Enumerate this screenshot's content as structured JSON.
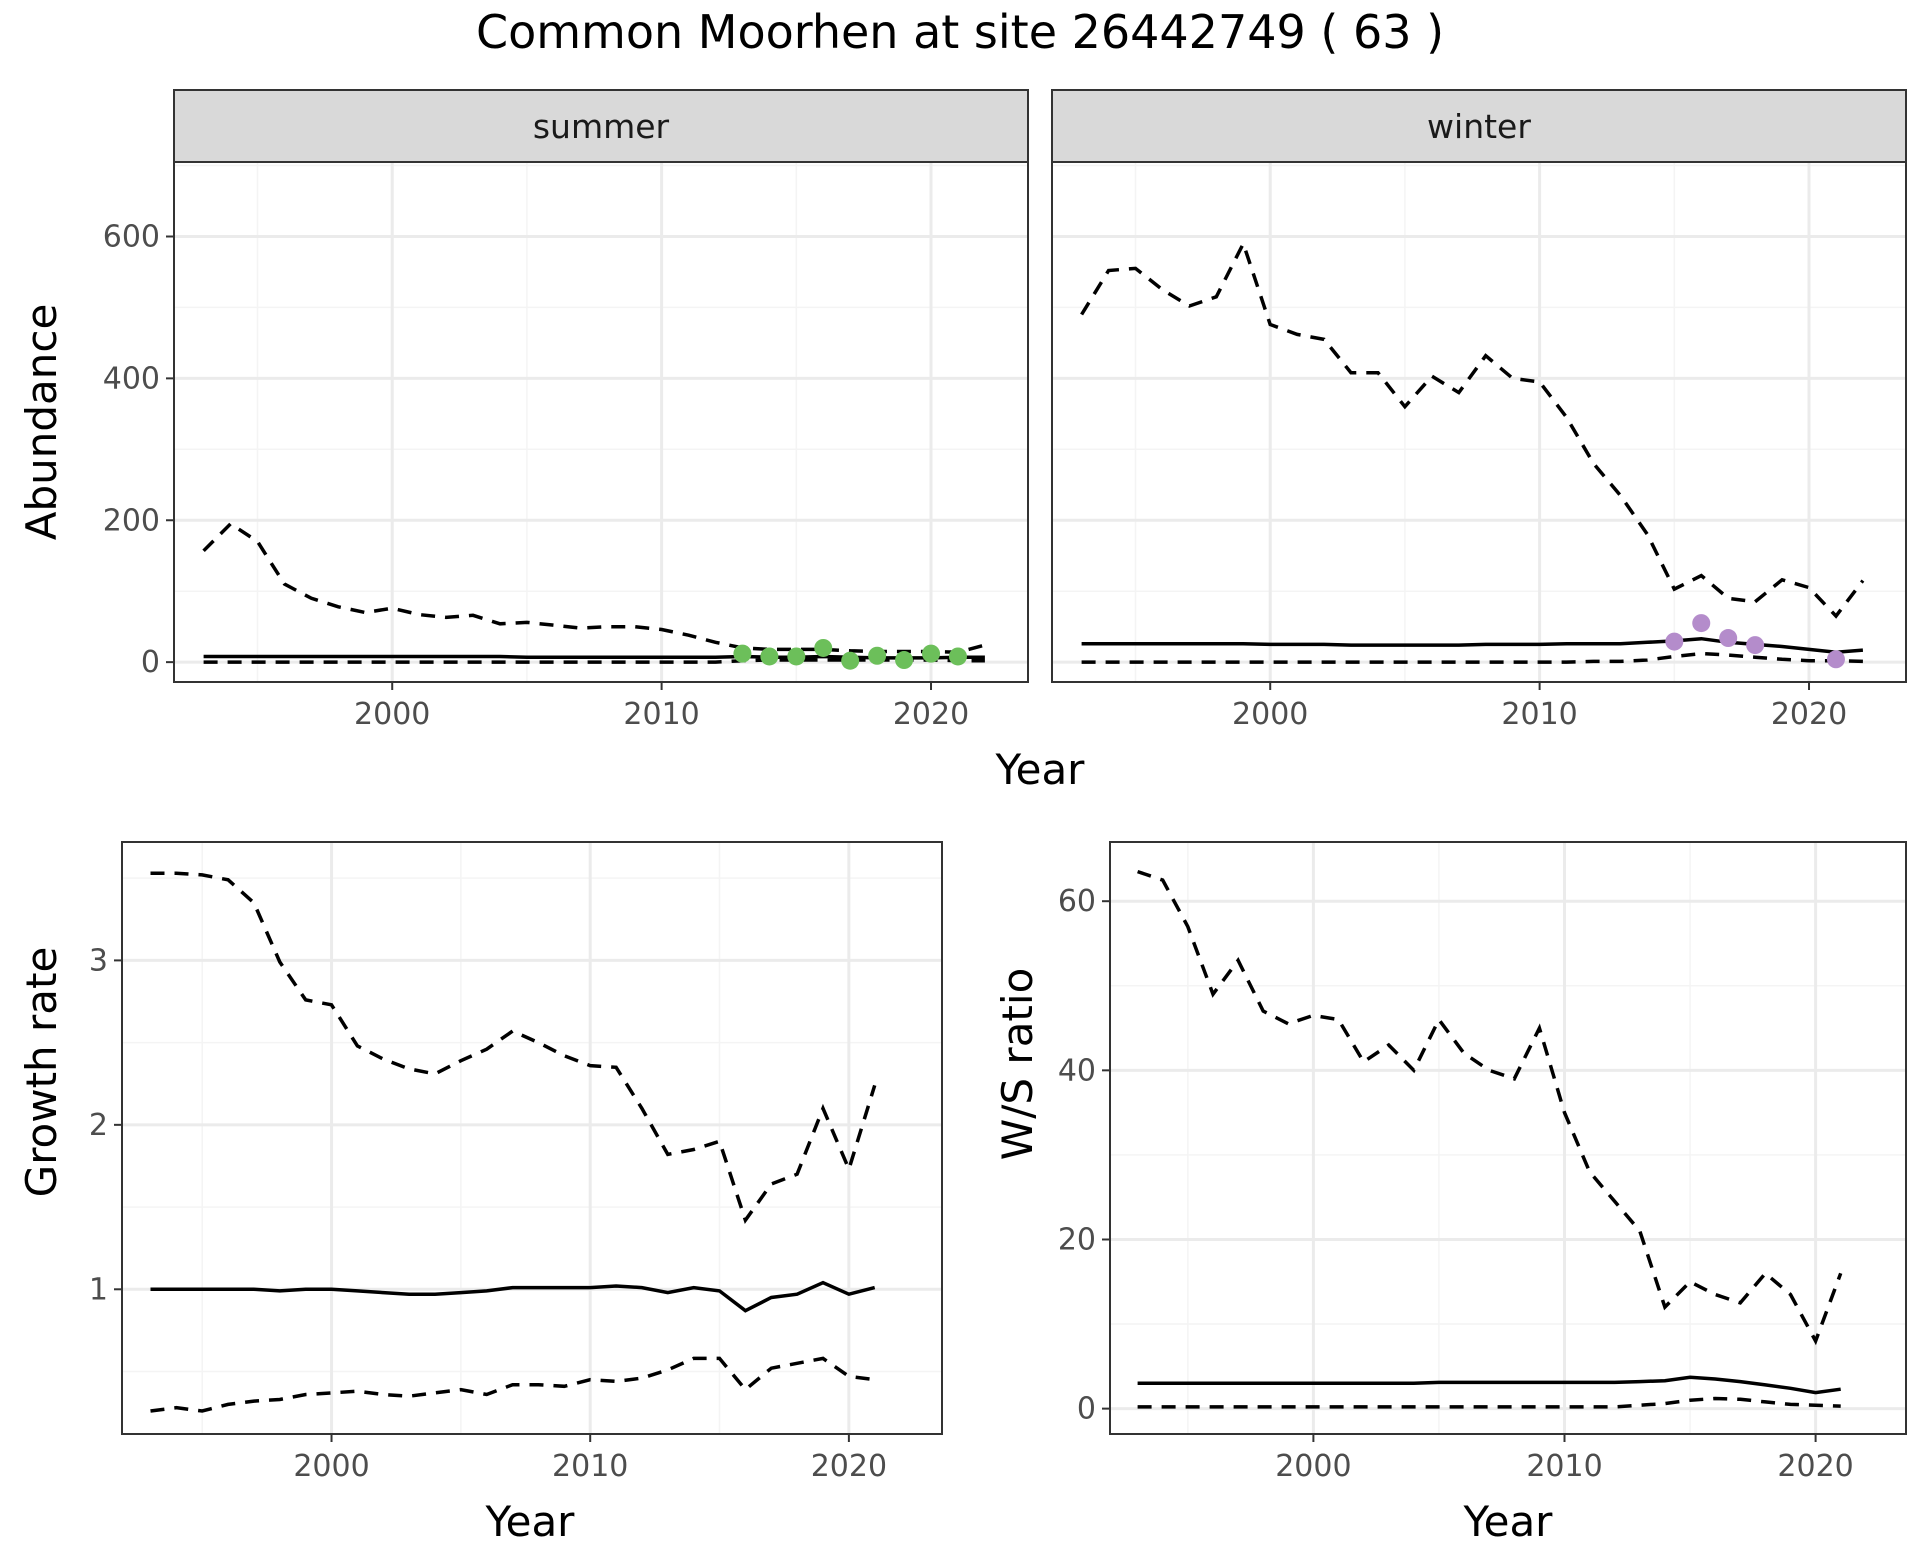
{
  "figure": {
    "title": "Common Moorhen at site 26442749 ( 63 )"
  },
  "colors": {
    "summer_points": "#6cbf5a",
    "winter_points": "#b48ccb",
    "lines": "#000000"
  },
  "chart_data": [
    {
      "id": "abundance",
      "type": "line",
      "ylabel": "Abundance",
      "xlabel": "Year",
      "facets": [
        "summer",
        "winter"
      ],
      "xlim": [
        1991.9,
        2023.6
      ],
      "ylim": [
        -28,
        705
      ],
      "xticks": [
        2000,
        2010,
        2020
      ],
      "yticks": [
        0,
        200,
        400,
        600
      ],
      "x": [
        1993,
        1994,
        1995,
        1996,
        1997,
        1998,
        1999,
        2000,
        2001,
        2002,
        2003,
        2004,
        2005,
        2006,
        2007,
        2008,
        2009,
        2010,
        2011,
        2012,
        2013,
        2014,
        2015,
        2016,
        2017,
        2018,
        2019,
        2020,
        2021,
        2022
      ],
      "panels": [
        {
          "facet": "summer",
          "mean": [
            8,
            8,
            8,
            8,
            8,
            8,
            8,
            8,
            8,
            8,
            8,
            8,
            7,
            7,
            7,
            7,
            7,
            7,
            7,
            7,
            8,
            7,
            7,
            8,
            7,
            6,
            6,
            6,
            7,
            7
          ],
          "upper": [
            157,
            195,
            170,
            110,
            90,
            78,
            70,
            76,
            67,
            63,
            66,
            54,
            56,
            52,
            48,
            50,
            50,
            46,
            38,
            28,
            20,
            18,
            18,
            18,
            16,
            15,
            15,
            15,
            14,
            24
          ],
          "lower": [
            0,
            0,
            0,
            0,
            0,
            0,
            0,
            0,
            0,
            0,
            0,
            0,
            0,
            0,
            0,
            0,
            0,
            0,
            0,
            0,
            2,
            3,
            3,
            3,
            3,
            3,
            3,
            3,
            2,
            2
          ],
          "observed_x": [
            2013,
            2014,
            2015,
            2016,
            2017,
            2018,
            2019,
            2020,
            2021
          ],
          "observed_y": [
            12,
            8,
            8,
            20,
            2,
            9,
            3,
            12,
            8
          ]
        },
        {
          "facet": "winter",
          "mean": [
            26,
            26,
            26,
            26,
            26,
            26,
            26,
            25,
            25,
            25,
            24,
            24,
            24,
            24,
            24,
            25,
            25,
            25,
            26,
            26,
            26,
            28,
            30,
            33,
            28,
            25,
            22,
            18,
            14,
            17
          ],
          "upper": [
            490,
            552,
            555,
            525,
            502,
            515,
            590,
            476,
            462,
            455,
            408,
            408,
            360,
            403,
            380,
            432,
            400,
            395,
            345,
            280,
            235,
            180,
            103,
            122,
            90,
            85,
            116,
            105,
            65,
            115
          ],
          "lower": [
            0,
            0,
            0,
            0,
            0,
            0,
            0,
            0,
            0,
            0,
            0,
            0,
            0,
            0,
            0,
            0,
            0,
            0,
            0,
            1,
            1,
            3,
            8,
            12,
            10,
            7,
            4,
            2,
            2,
            1
          ],
          "observed_x": [
            2015,
            2016,
            2017,
            2018,
            2021
          ],
          "observed_y": [
            29,
            55,
            34,
            24,
            4
          ]
        }
      ]
    },
    {
      "id": "growth",
      "type": "line",
      "ylabel": "Growth rate",
      "xlabel": "Year",
      "xlim": [
        1991.9,
        2023.6
      ],
      "ylim": [
        0.12,
        3.72
      ],
      "xticks": [
        2000,
        2010,
        2020
      ],
      "yticks": [
        1,
        2,
        3
      ],
      "x": [
        1993,
        1994,
        1995,
        1996,
        1997,
        1998,
        1999,
        2000,
        2001,
        2002,
        2003,
        2004,
        2005,
        2006,
        2007,
        2008,
        2009,
        2010,
        2011,
        2012,
        2013,
        2014,
        2015,
        2016,
        2017,
        2018,
        2019,
        2020,
        2021
      ],
      "mean": [
        1.0,
        1.0,
        1.0,
        1.0,
        1.0,
        0.99,
        1.0,
        1.0,
        0.99,
        0.98,
        0.97,
        0.97,
        0.98,
        0.99,
        1.01,
        1.01,
        1.01,
        1.01,
        1.02,
        1.01,
        0.98,
        1.01,
        0.99,
        0.87,
        0.95,
        0.97,
        1.04,
        0.97,
        1.01
      ],
      "upper": [
        3.53,
        3.53,
        3.52,
        3.49,
        3.35,
        2.99,
        2.76,
        2.73,
        2.48,
        2.4,
        2.34,
        2.31,
        2.39,
        2.46,
        2.57,
        2.5,
        2.42,
        2.36,
        2.35,
        2.1,
        1.82,
        1.85,
        1.9,
        1.42,
        1.64,
        1.7,
        2.1,
        1.73,
        2.24
      ],
      "lower": [
        0.26,
        0.28,
        0.26,
        0.3,
        0.32,
        0.33,
        0.36,
        0.37,
        0.38,
        0.36,
        0.35,
        0.37,
        0.39,
        0.36,
        0.42,
        0.42,
        0.41,
        0.45,
        0.44,
        0.46,
        0.51,
        0.58,
        0.58,
        0.39,
        0.52,
        0.55,
        0.58,
        0.47,
        0.45
      ]
    },
    {
      "id": "ws_ratio",
      "type": "line",
      "ylabel": "W/S ratio",
      "xlabel": "Year",
      "xlim": [
        1991.9,
        2023.6
      ],
      "ylim": [
        -3,
        67
      ],
      "xticks": [
        2000,
        2010,
        2020
      ],
      "yticks": [
        0,
        20,
        40,
        60
      ],
      "x": [
        1993,
        1994,
        1995,
        1996,
        1997,
        1998,
        1999,
        2000,
        2001,
        2002,
        2003,
        2004,
        2005,
        2006,
        2007,
        2008,
        2009,
        2010,
        2011,
        2012,
        2013,
        2014,
        2015,
        2016,
        2017,
        2018,
        2019,
        2020,
        2021
      ],
      "mean": [
        3.0,
        3.0,
        3.0,
        3.0,
        3.0,
        3.0,
        3.0,
        3.0,
        3.0,
        3.0,
        3.0,
        3.0,
        3.1,
        3.1,
        3.1,
        3.1,
        3.1,
        3.1,
        3.1,
        3.1,
        3.2,
        3.3,
        3.7,
        3.5,
        3.2,
        2.8,
        2.4,
        1.9,
        2.3
      ],
      "upper": [
        63.5,
        62.5,
        57,
        49,
        53,
        47,
        45.5,
        46.5,
        46,
        41,
        43,
        40,
        46,
        42,
        40,
        39,
        45,
        35,
        28,
        24.5,
        21,
        12,
        15,
        13.5,
        12.5,
        16,
        13.5,
        8,
        16
      ],
      "lower": [
        0.2,
        0.2,
        0.2,
        0.2,
        0.2,
        0.2,
        0.2,
        0.2,
        0.2,
        0.2,
        0.2,
        0.2,
        0.2,
        0.2,
        0.2,
        0.2,
        0.2,
        0.2,
        0.2,
        0.2,
        0.4,
        0.6,
        1.0,
        1.2,
        1.1,
        0.8,
        0.5,
        0.4,
        0.3
      ]
    }
  ]
}
